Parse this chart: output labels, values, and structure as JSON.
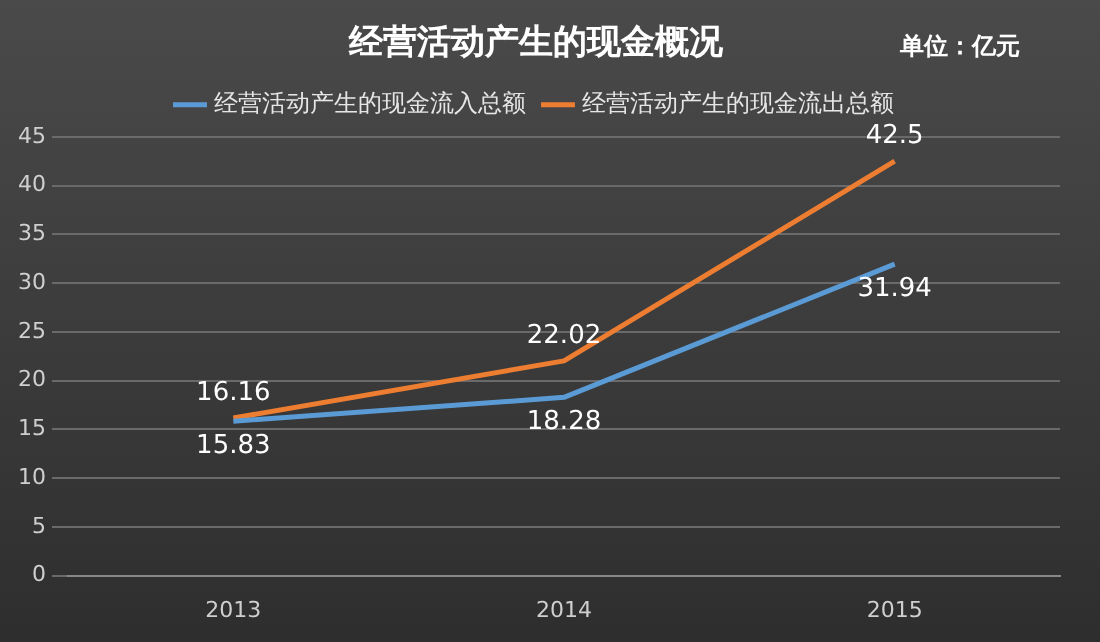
{
  "chart_data": {
    "type": "line",
    "title": "经营活动产生的现金概况",
    "annotations": [
      "单位：亿元"
    ],
    "categories": [
      "2013",
      "2014",
      "2015"
    ],
    "series": [
      {
        "name": "经营活动产生的现金流入总额",
        "color": "#5b9bd5",
        "values": [
          15.83,
          18.28,
          31.94
        ]
      },
      {
        "name": "经营活动产生的现金流出总额",
        "color": "#ed7d31",
        "values": [
          16.16,
          22.02,
          42.5
        ]
      }
    ],
    "ylim": [
      0,
      45
    ],
    "yticks": [
      0,
      5,
      10,
      15,
      20,
      25,
      30,
      35,
      40,
      45
    ],
    "grid": "y",
    "legend": "top",
    "marker": "none",
    "line_style": "solid",
    "data_labels": true
  }
}
